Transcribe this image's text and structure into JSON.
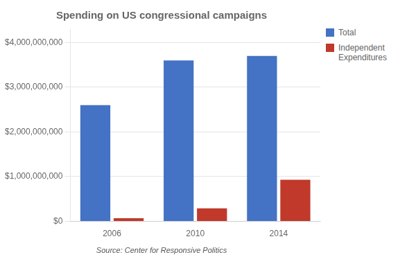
{
  "chart_data": {
    "type": "bar",
    "title": "Spending on US congressional campaigns",
    "categories": [
      "2006",
      "2010",
      "2014"
    ],
    "series": [
      {
        "name": "Total",
        "color": "#4472c4",
        "values": [
          2600000000,
          3600000000,
          3700000000
        ]
      },
      {
        "name": "Independent\nExpenditures",
        "color": "#c0392b",
        "values": [
          70000000,
          290000000,
          930000000
        ]
      }
    ],
    "ylim": [
      0,
      4300000000
    ],
    "yticks": [
      {
        "value": 0,
        "label": "$0"
      },
      {
        "value": 1000000000,
        "label": "$1,000,000,000"
      },
      {
        "value": 2000000000,
        "label": "$2,000,000,000"
      },
      {
        "value": 3000000000,
        "label": "$3,000,000,000"
      },
      {
        "value": 4000000000,
        "label": "$4,000,000,000"
      }
    ],
    "grid": true,
    "legend": "right",
    "annotation": "Source: Center for Responsive Politics"
  }
}
